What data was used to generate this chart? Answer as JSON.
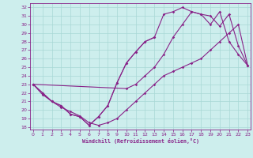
{
  "xlabel": "Windchill (Refroidissement éolien,°C)",
  "bg_color": "#cdeeed",
  "grid_color": "#a8d8d5",
  "line_color": "#882288",
  "xlim": [
    -0.3,
    23.3
  ],
  "ylim": [
    17.7,
    32.5
  ],
  "xticks": [
    0,
    1,
    2,
    3,
    4,
    5,
    6,
    7,
    8,
    9,
    10,
    11,
    12,
    13,
    14,
    15,
    16,
    17,
    18,
    19,
    20,
    21,
    22,
    23
  ],
  "yticks": [
    18,
    19,
    20,
    21,
    22,
    23,
    24,
    25,
    26,
    27,
    28,
    29,
    30,
    31,
    32
  ],
  "line1_x": [
    0,
    1,
    2,
    3,
    4,
    5,
    6,
    7,
    8,
    9,
    10,
    11,
    12,
    13
  ],
  "line1_y": [
    23,
    22,
    21,
    20.5,
    19.5,
    19.2,
    18.2,
    19.2,
    20.5,
    23.2,
    25.5,
    26.8,
    28.0,
    28.5
  ],
  "line2_x": [
    0,
    1,
    2,
    3,
    4,
    5,
    6,
    7,
    8,
    9,
    10,
    11,
    12,
    13,
    14,
    15,
    16,
    17,
    18,
    19,
    20,
    21,
    22,
    23
  ],
  "line2_y": [
    23,
    22,
    21,
    20.5,
    19.5,
    19.2,
    18.2,
    19.2,
    20.5,
    23.2,
    25.5,
    26.8,
    28.0,
    28.5,
    31.2,
    31.5,
    32,
    31.5,
    31.2,
    30,
    31.5,
    28,
    26.5,
    25.2
  ],
  "line3_x": [
    0,
    10,
    11,
    12,
    13,
    14,
    15,
    16,
    17,
    18,
    19,
    20,
    21,
    22,
    23
  ],
  "line3_y": [
    23,
    22.5,
    23.0,
    24.0,
    25.0,
    26.5,
    28.5,
    30.0,
    31.5,
    31.2,
    31.0,
    29.8,
    31.2,
    27.5,
    25.2
  ],
  "line4_x": [
    0,
    1,
    2,
    3,
    4,
    5,
    6,
    7,
    8,
    9,
    10,
    11,
    12,
    13,
    14,
    15,
    16,
    17,
    18,
    19,
    20,
    21,
    22,
    23
  ],
  "line4_y": [
    23,
    21.8,
    21.0,
    20.3,
    19.8,
    19.3,
    18.5,
    18.2,
    18.5,
    19.0,
    20.0,
    21.0,
    22.0,
    23.0,
    24.0,
    24.5,
    25.0,
    25.5,
    26.0,
    27.0,
    28.0,
    29.0,
    30.0,
    25.2
  ]
}
